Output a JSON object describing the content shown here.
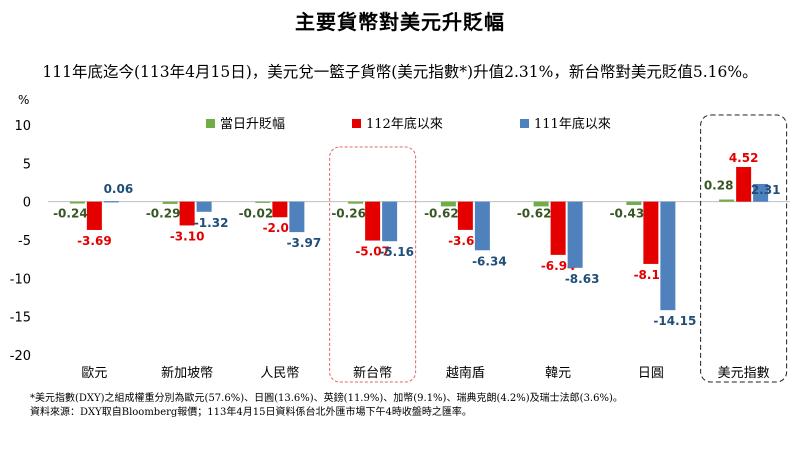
{
  "title": "主要貨幣對美元升貶幅",
  "subtitle": "111年底迄今(113年4月15日)，美元兌一籃子貨幣(美元指數*)升值2.31%，新台幣對美元貶值5.16%。",
  "notes": [
    "*美元指數(DXY)之組成權重分別為歐元(57.6%)、日圓(13.6%)、英鎊(11.9%)、加幣(9.1%)、瑞典克朗(4.2%)及瑞士法郎(3.6%)。",
    "資料來源：DXY取自Bloomberg報價；113年4月15日資料係台北外匯市場下午4時收盤時之匯率。"
  ],
  "chart_data": {
    "type": "bar",
    "ylabel": "%",
    "ylim": [
      -20,
      10
    ],
    "yticks": [
      10,
      5,
      0,
      -5,
      -10,
      -15,
      -20
    ],
    "grid": false,
    "legend_position": "top-center",
    "highlighted_categories": [
      "新台幣",
      "美元指數"
    ],
    "categories": [
      "歐元",
      "新加坡幣",
      "人民幣",
      "新台幣",
      "越南盾",
      "韓元",
      "日圓",
      "美元指數"
    ],
    "series": [
      {
        "name": "當日升貶幅",
        "color": "#70ad47",
        "label_color": "#375623",
        "values": [
          -0.24,
          -0.29,
          -0.02,
          -0.26,
          -0.62,
          -0.62,
          -0.43,
          0.28
        ],
        "labels": [
          "-0.24",
          "-0.29",
          "-0.02",
          "-0.26",
          "-0.62",
          "-0.62",
          "-0.43",
          "0.28"
        ]
      },
      {
        "name": "112年底以來",
        "color": "#e50000",
        "label_color": "#e50000",
        "values": [
          -3.69,
          -3.1,
          -2.03,
          -5.07,
          -3.68,
          -6.94,
          -8.12,
          4.52
        ],
        "labels": [
          "-3.69",
          "-3.10",
          "-2.03",
          "-5.07",
          "-3.68",
          "-6.94",
          "-8.12",
          "4.52"
        ]
      },
      {
        "name": "111年底以來",
        "color": "#4f81bd",
        "label_color": "#1f4e79",
        "values": [
          0.06,
          -1.32,
          -3.97,
          -5.16,
          -6.34,
          -8.63,
          -14.15,
          2.31
        ],
        "labels": [
          "0.06",
          "-1.32",
          "-3.97",
          "-5.16",
          "-6.34",
          "-8.63",
          "-14.15",
          "2.31"
        ]
      }
    ]
  }
}
